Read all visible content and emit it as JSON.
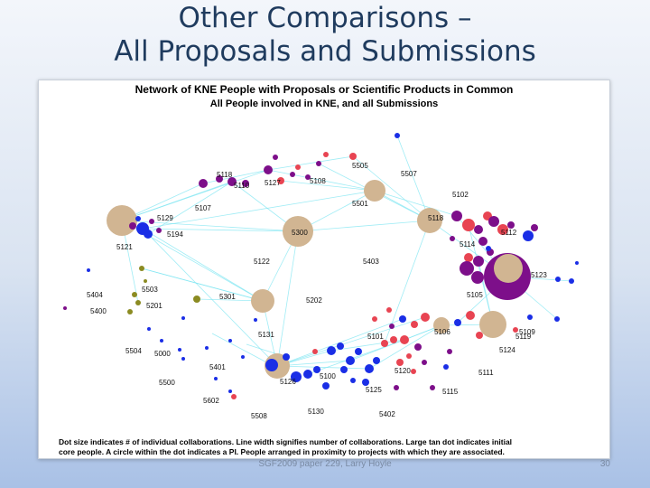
{
  "slide": {
    "title_line1": "Other Comparisons –",
    "title_line2": "All Proposals and Submissions",
    "footer": "SGF2009 paper 229, Larry Hoyle",
    "page_number": "30"
  },
  "figure": {
    "title_line1": "Network of KNE People with Proposals or Scientific Products in Common",
    "title_line2": "All People involved in KNE, and all Submissions",
    "caption_line1": "Dot size indicates # of individual collaborations. Line width signifies number of collaborations. Large tan dot indicates initial",
    "caption_line2": "core people. A circle within the dot indicates a PI. People arranged in proximity to projects with which they are associated."
  },
  "colors": {
    "tan": "#d1b592",
    "blue": "#1a2ee6",
    "purple": "#7d0f8a",
    "red": "#e84452",
    "olive": "#8b8b22",
    "edge": "#7fe6f2"
  },
  "project_labels": [
    "5505",
    "5507",
    "5118",
    "5110",
    "5127",
    "5108",
    "5102",
    "5501",
    "5107",
    "5129",
    "5118",
    "5112",
    "5194",
    "5300",
    "5114",
    "5121",
    "5122",
    "5403",
    "5123",
    "5503",
    "5404",
    "5201",
    "5301",
    "5202",
    "5105",
    "5400",
    "5106",
    "5109",
    "5131",
    "5101",
    "5119",
    "5124",
    "5504",
    "5000",
    "5401",
    "5120",
    "5111",
    "5500",
    "5126",
    "5100",
    "5125",
    "5115",
    "5602",
    "5130",
    "5402",
    "5508"
  ]
}
